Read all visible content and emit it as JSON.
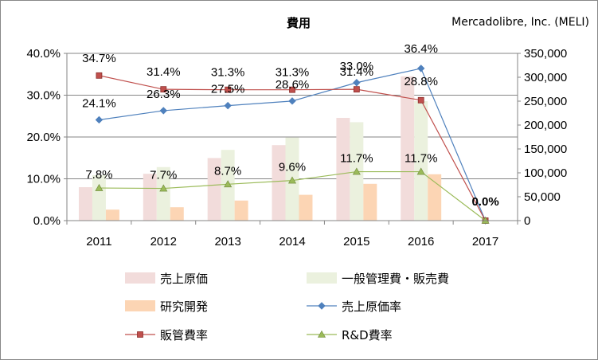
{
  "title": "費用",
  "subtitle": "Mercadolibre, Inc. (MELI)",
  "chart_data": {
    "type": "bar",
    "categories": [
      "2011",
      "2012",
      "2013",
      "2014",
      "2015",
      "2016",
      "2017"
    ],
    "y_left": {
      "min": 0,
      "max": 0.4,
      "ticks": [
        "0.0%",
        "10.0%",
        "20.0%",
        "30.0%",
        "40.0%"
      ]
    },
    "y_right": {
      "min": 0,
      "max": 350000,
      "ticks": [
        "0",
        "50,000",
        "100,000",
        "150,000",
        "200,000",
        "250,000",
        "300,000",
        "350,000"
      ]
    },
    "grid": true,
    "legend_position": "bottom",
    "bar_series": [
      {
        "name": "売上原価",
        "color": "#f2dcdb",
        "values": [
          70000,
          98000,
          131000,
          158000,
          215000,
          302000,
          0
        ]
      },
      {
        "name": "一般管理費・販売費",
        "color": "#ebf1de",
        "values": [
          95000,
          112000,
          148000,
          174000,
          206000,
          250000,
          0
        ]
      },
      {
        "name": "研究開発",
        "color": "#fcd5b4",
        "values": [
          23000,
          28000,
          42000,
          54000,
          77000,
          97000,
          0
        ]
      }
    ],
    "line_series": [
      {
        "name": "売上原価率",
        "color": "#4f81bd",
        "marker": "diamond",
        "values": [
          0.241,
          0.263,
          0.275,
          0.286,
          0.33,
          0.364,
          0.0
        ],
        "labels": [
          "24.1%",
          "26.3%",
          "27.5%",
          "28.6%",
          "33.0%",
          "36.4%",
          "0.0%"
        ]
      },
      {
        "name": "販管費率",
        "color": "#c0504d",
        "marker": "square",
        "values": [
          0.347,
          0.314,
          0.313,
          0.313,
          0.314,
          0.288,
          0.0
        ],
        "labels": [
          "34.7%",
          "31.4%",
          "31.3%",
          "31.3%",
          "31.4%",
          "28.8%",
          "0.0%"
        ]
      },
      {
        "name": "R&D費率",
        "color": "#9bbb59",
        "marker": "triangle",
        "values": [
          0.078,
          0.077,
          0.087,
          0.096,
          0.117,
          0.117,
          0.0
        ],
        "labels": [
          "7.8%",
          "7.7%",
          "8.7%",
          "9.6%",
          "11.7%",
          "11.7%",
          "0.0%"
        ]
      }
    ]
  }
}
